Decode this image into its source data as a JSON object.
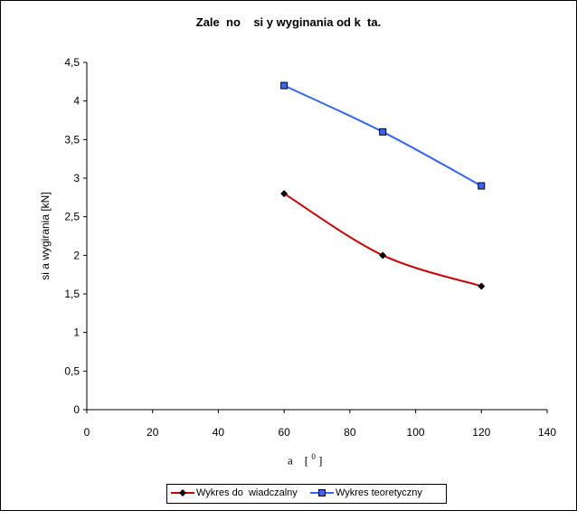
{
  "chart_data": {
    "type": "line",
    "title": "Zale  no    si y wyginania od k  ta.",
    "xlabel": "a     [ 0 ]",
    "ylabel": "si a wygirania [kN]",
    "xlim": [
      0,
      140
    ],
    "ylim": [
      0,
      4.5
    ],
    "x_ticks": [
      "0",
      "20",
      "40",
      "60",
      "80",
      "100",
      "120",
      "140"
    ],
    "y_ticks": [
      "0",
      "0,5",
      "1",
      "1,5",
      "2",
      "2,5",
      "3",
      "3,5",
      "4",
      "4,5"
    ],
    "grid": false,
    "legend_position": "bottom",
    "series": [
      {
        "name": "Wykres do  wiadczalny",
        "color": "#cc0000",
        "marker": "diamond",
        "x": [
          60,
          90,
          120
        ],
        "values": [
          2.8,
          2.0,
          1.6
        ]
      },
      {
        "name": "Wykres teoretyczny",
        "color": "#3366ff",
        "marker": "square",
        "x": [
          60,
          90,
          120
        ],
        "values": [
          4.2,
          3.6,
          2.9
        ]
      }
    ]
  }
}
